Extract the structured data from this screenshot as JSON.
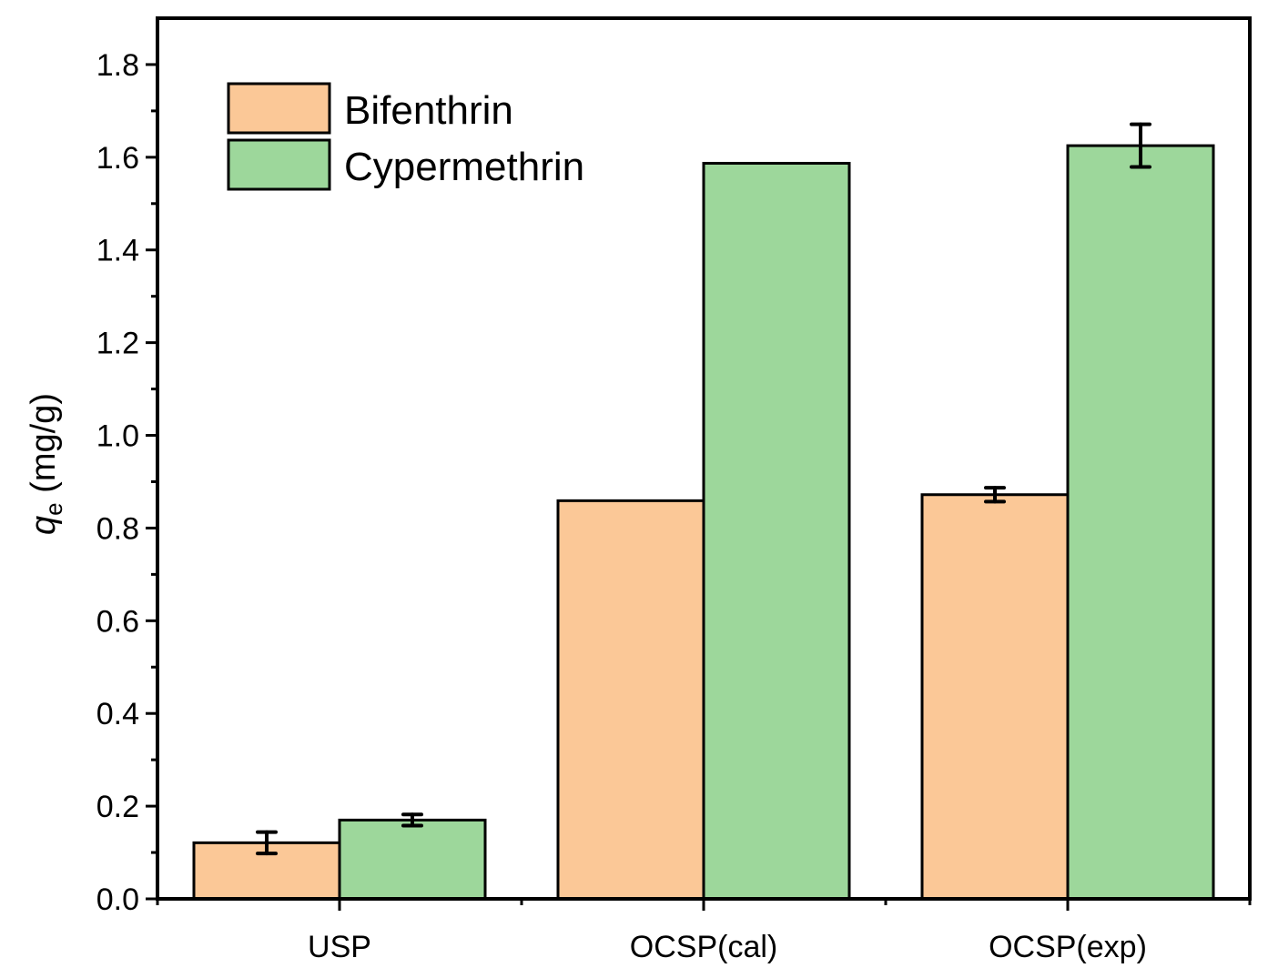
{
  "chart_data": {
    "type": "bar",
    "categories": [
      "USP",
      "OCSP(cal)",
      "OCSP(exp)"
    ],
    "series": [
      {
        "name": "Bifenthrin",
        "color": "#FBC897",
        "values": [
          0.121,
          0.859,
          0.872
        ],
        "errors": [
          0.023,
          null,
          0.015
        ]
      },
      {
        "name": "Cypermethrin",
        "color": "#9DD79B",
        "values": [
          0.17,
          1.587,
          1.625
        ],
        "errors": [
          0.012,
          null,
          0.046
        ]
      }
    ],
    "ylabel_main": "q",
    "ylabel_sub": "e",
    "ylabel_unit": " (mg/g)",
    "xlabel": "",
    "ylim": [
      0,
      1.9
    ],
    "yticks": [
      "0.0",
      "0.2",
      "0.4",
      "0.6",
      "0.8",
      "1.0",
      "1.2",
      "1.4",
      "1.6",
      "1.8"
    ],
    "grid": false,
    "legend_position": "top-left"
  }
}
